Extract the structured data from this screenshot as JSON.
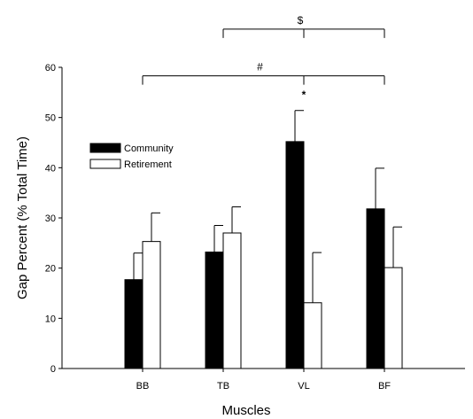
{
  "chart_data": {
    "type": "bar",
    "xlabel": "Muscles",
    "ylabel": "Gap Percent (% Total Time)",
    "categories": [
      "BB",
      "TB",
      "VL",
      "BF"
    ],
    "ylim": [
      0,
      60
    ],
    "yticks": [
      "0",
      "10",
      "20",
      "30",
      "40",
      "50",
      "60"
    ],
    "grid": false,
    "legend_position": "upper-left",
    "series": [
      {
        "name": "Community",
        "color": "#000000",
        "values": [
          17.7,
          23.2,
          45.2,
          31.8
        ],
        "errors": [
          5.3,
          5.3,
          6.2,
          8.1
        ]
      },
      {
        "name": "Retirement",
        "color": "#ffffff",
        "values": [
          25.3,
          27.0,
          13.1,
          20.1
        ],
        "errors": [
          5.7,
          5.2,
          10.0,
          8.1
        ]
      }
    ],
    "annotations": [
      {
        "symbol": "#",
        "from": "BB",
        "to": "BF",
        "anchor": "VL",
        "level": 58.3
      },
      {
        "symbol": "$",
        "from": "TB",
        "to": "BF",
        "level": 67.6
      },
      {
        "symbol": "*",
        "category": "VL",
        "level": 54.5
      }
    ]
  }
}
